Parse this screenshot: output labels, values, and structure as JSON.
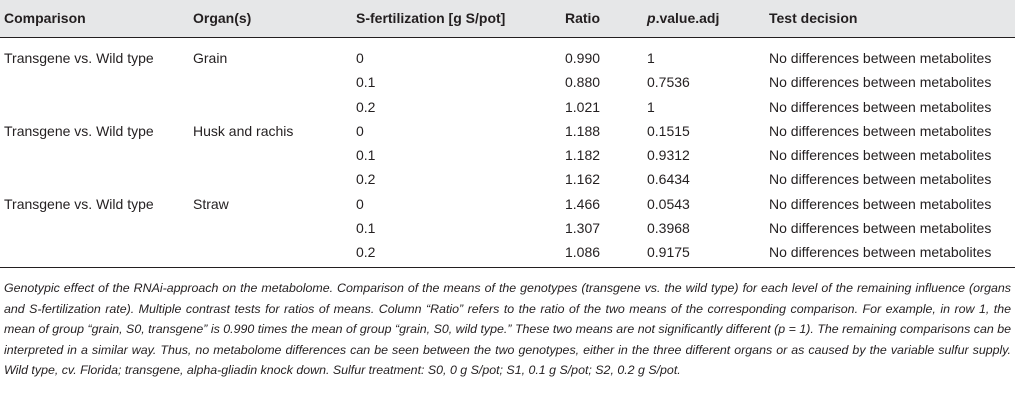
{
  "table": {
    "headers": {
      "comparison": "Comparison",
      "organs": "Organ(s)",
      "s_fertilization": "S-fertilization [g S/pot]",
      "ratio": "Ratio",
      "pvalue_italic": "p",
      "pvalue_rest": ".value.adj",
      "decision": "Test decision"
    },
    "rows": [
      {
        "comparison": "Transgene vs. Wild type",
        "organ": "Grain",
        "s": "0",
        "ratio": "0.990",
        "p": "1",
        "decision": "No differences between metabolites"
      },
      {
        "comparison": "",
        "organ": "",
        "s": "0.1",
        "ratio": "0.880",
        "p": "0.7536",
        "decision": "No differences between metabolites"
      },
      {
        "comparison": "",
        "organ": "",
        "s": "0.2",
        "ratio": "1.021",
        "p": "1",
        "decision": "No differences between metabolites"
      },
      {
        "comparison": "Transgene vs. Wild type",
        "organ": "Husk and rachis",
        "s": "0",
        "ratio": "1.188",
        "p": "0.1515",
        "decision": "No differences between metabolites"
      },
      {
        "comparison": "",
        "organ": "",
        "s": "0.1",
        "ratio": "1.182",
        "p": "0.9312",
        "decision": "No differences between metabolites"
      },
      {
        "comparison": "",
        "organ": "",
        "s": "0.2",
        "ratio": "1.162",
        "p": "0.6434",
        "decision": "No differences between metabolites"
      },
      {
        "comparison": "Transgene vs. Wild type",
        "organ": "Straw",
        "s": "0",
        "ratio": "1.466",
        "p": "0.0543",
        "decision": "No differences between metabolites"
      },
      {
        "comparison": "",
        "organ": "",
        "s": "0.1",
        "ratio": "1.307",
        "p": "0.3968",
        "decision": "No differences between metabolites"
      },
      {
        "comparison": "",
        "organ": "",
        "s": "0.2",
        "ratio": "1.086",
        "p": "0.9175",
        "decision": "No differences between metabolites"
      }
    ]
  },
  "caption": "Genotypic effect of the RNAi-approach on the metabolome. Comparison of the means of the genotypes (transgene vs. the wild type) for each level of the remaining influence (organs and S-fertilization rate). Multiple contrast tests for ratios of means. Column “Ratio” refers to the ratio of the two means of the corresponding comparison. For example, in row 1, the mean of group “grain, S0, transgene” is 0.990 times the mean of group “grain, S0, wild type.” These two means are not significantly different (p = 1). The remaining comparisons can be interpreted in a similar way. Thus, no metabolome differences can be seen between the two genotypes, either in the three different organs or as caused by the variable sulfur supply. Wild type, cv. Florida; transgene, alpha-gliadin knock down. Sulfur treatment: S0, 0 g S/pot; S1, 0.1 g S/pot; S2, 0.2 g S/pot.",
  "colors": {
    "header_bg": "#e6e7e8",
    "text": "#231f20"
  }
}
